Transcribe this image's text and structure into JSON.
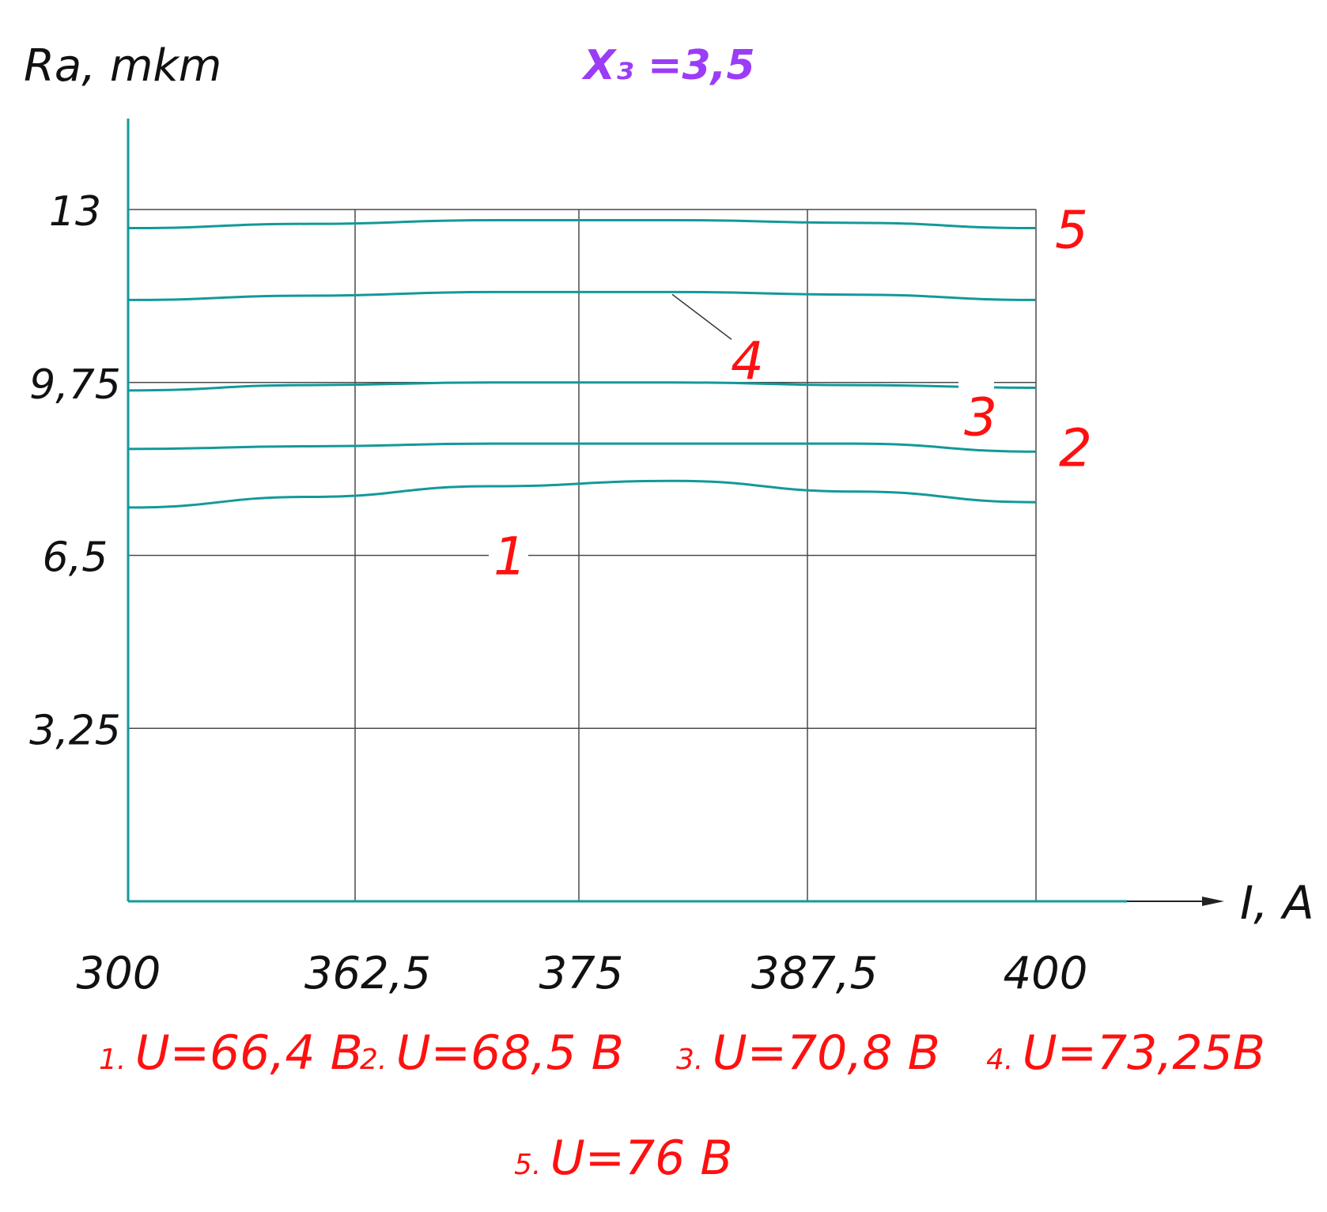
{
  "chart_data": {
    "type": "line",
    "title": "X₃ =3,5",
    "xlabel": "I, A",
    "ylabel": "Ra, mkm",
    "x_ticks": [
      "300",
      "362,5",
      "375",
      "387,5",
      "400"
    ],
    "y_ticks": [
      "3,25",
      "6,5",
      "9,75",
      "13"
    ],
    "ylim": [
      0,
      13
    ],
    "grid": true,
    "series": [
      {
        "name": "1",
        "values": [
          7.4,
          7.6,
          7.8,
          7.9,
          7.7,
          7.5
        ]
      },
      {
        "name": "2",
        "values": [
          8.5,
          8.55,
          8.6,
          8.6,
          8.6,
          8.45
        ]
      },
      {
        "name": "3",
        "values": [
          9.6,
          9.7,
          9.75,
          9.75,
          9.7,
          9.65
        ]
      },
      {
        "name": "4",
        "values": [
          11.3,
          11.38,
          11.45,
          11.45,
          11.4,
          11.3
        ]
      },
      {
        "name": "5",
        "values": [
          12.65,
          12.73,
          12.8,
          12.8,
          12.75,
          12.65
        ]
      }
    ],
    "legend": [
      {
        "num": "1.",
        "text": "U=66,4  B"
      },
      {
        "num": "2.",
        "text": "U=68,5 B"
      },
      {
        "num": "3.",
        "text": "U=70,8 B"
      },
      {
        "num": "4.",
        "text": "U=73,25B"
      },
      {
        "num": "5.",
        "text": "U=76  B"
      }
    ],
    "colors": {
      "curve": "#13999a",
      "axis": "#13999a",
      "grid": "#4a4a4a",
      "label": "#ff1010",
      "title": "#9b3cf7"
    }
  }
}
